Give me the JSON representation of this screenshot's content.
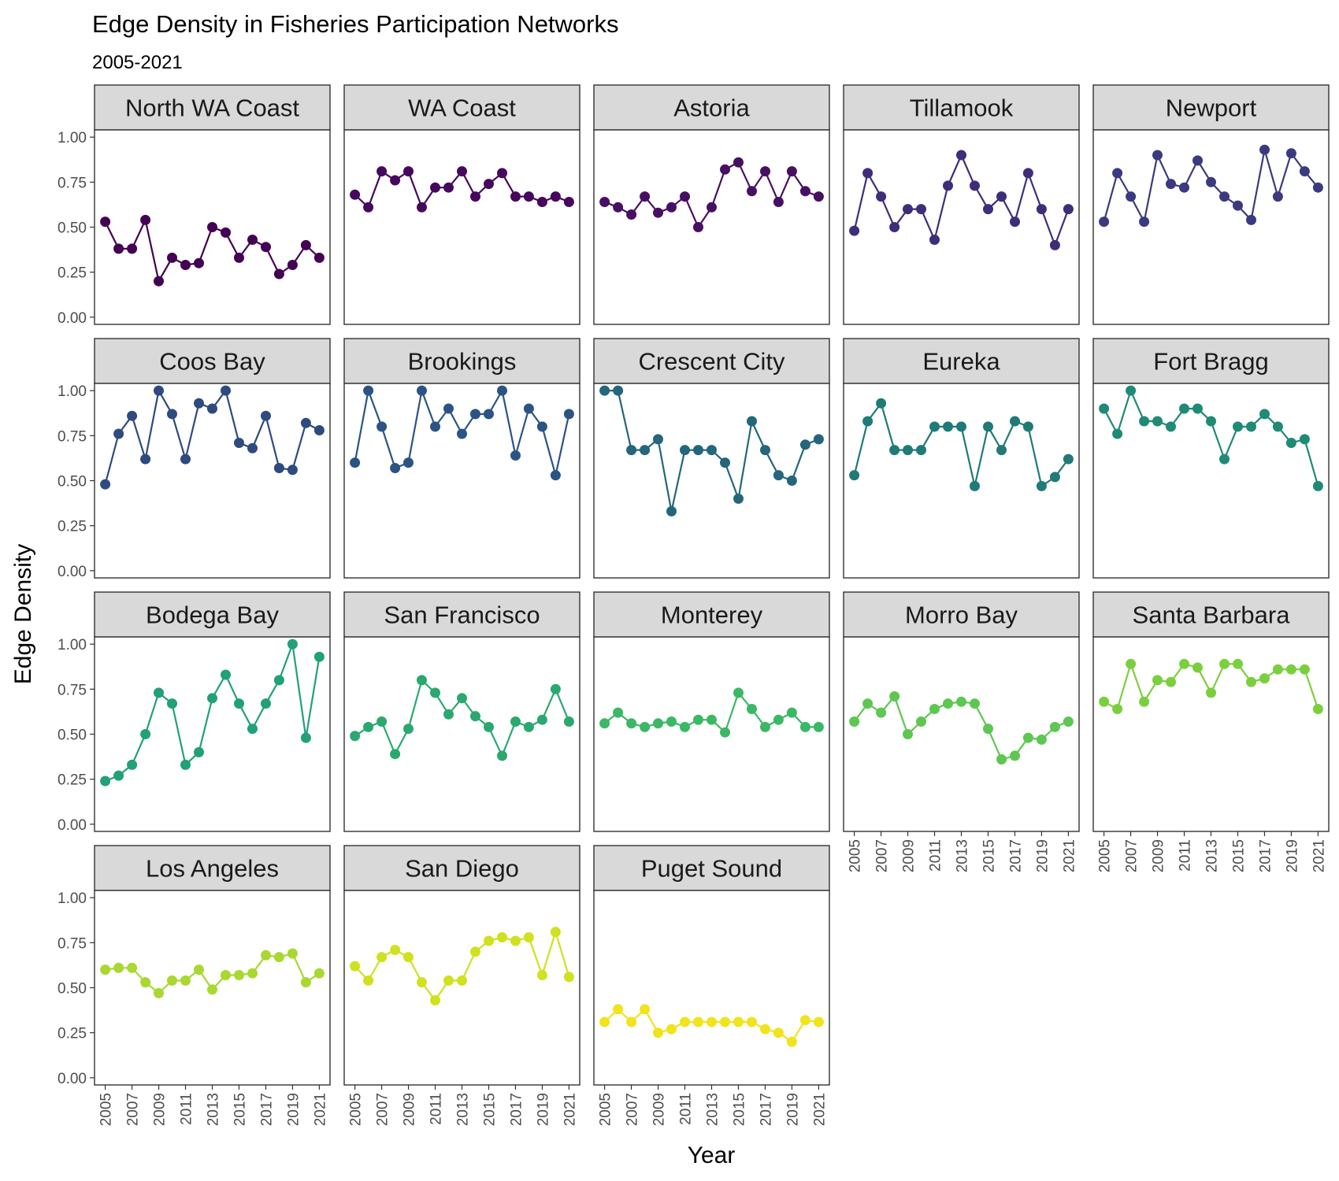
{
  "chart_data": {
    "type": "line",
    "title": "Edge Density in Fisheries Participation Networks",
    "subtitle": "2005-2021",
    "xlabel": "Year",
    "ylabel": "Edge Density",
    "ylim": [
      -0.04,
      1.04
    ],
    "y_ticks": [
      "0.00",
      "0.25",
      "0.50",
      "0.75",
      "1.00"
    ],
    "x_ticks": [
      "2005",
      "2007",
      "2009",
      "2011",
      "2013",
      "2015",
      "2017",
      "2019",
      "2021"
    ],
    "x": [
      2005,
      2006,
      2007,
      2008,
      2009,
      2010,
      2011,
      2012,
      2013,
      2014,
      2015,
      2016,
      2017,
      2018,
      2019,
      2020,
      2021
    ],
    "grid": false,
    "legend": "none",
    "facets": [
      {
        "name": "North WA Coast",
        "color": "#440154",
        "values": [
          0.53,
          0.38,
          0.38,
          0.54,
          0.2,
          0.33,
          0.29,
          0.3,
          0.5,
          0.47,
          0.33,
          0.43,
          0.39,
          0.24,
          0.29,
          0.4,
          0.33
        ]
      },
      {
        "name": "WA Coast",
        "color": "#46085C",
        "values": [
          0.68,
          0.61,
          0.81,
          0.76,
          0.81,
          0.61,
          0.72,
          0.72,
          0.81,
          0.67,
          0.74,
          0.8,
          0.67,
          0.67,
          0.64,
          0.67,
          0.64
        ]
      },
      {
        "name": "Astoria",
        "color": "#471063",
        "values": [
          0.64,
          0.61,
          0.57,
          0.67,
          0.58,
          0.61,
          0.67,
          0.5,
          0.61,
          0.82,
          0.86,
          0.7,
          0.81,
          0.64,
          0.81,
          0.7,
          0.67
        ]
      },
      {
        "name": "Tillamook",
        "color": "#3F2D7A",
        "values": [
          0.48,
          0.8,
          0.67,
          0.5,
          0.6,
          0.6,
          0.43,
          0.73,
          0.9,
          0.73,
          0.6,
          0.67,
          0.53,
          0.8,
          0.6,
          0.4,
          0.6
        ]
      },
      {
        "name": "Newport",
        "color": "#3B3A80",
        "values": [
          0.53,
          0.8,
          0.67,
          0.53,
          0.9,
          0.74,
          0.72,
          0.87,
          0.75,
          0.67,
          0.62,
          0.54,
          0.93,
          0.67,
          0.91,
          0.81,
          0.72
        ]
      },
      {
        "name": "Coos Bay",
        "color": "#2E4A7F",
        "values": [
          0.48,
          0.76,
          0.86,
          0.62,
          1.0,
          0.87,
          0.62,
          0.93,
          0.9,
          1.0,
          0.71,
          0.68,
          0.86,
          0.57,
          0.56,
          0.82,
          0.78
        ]
      },
      {
        "name": "Brookings",
        "color": "#2B5484",
        "values": [
          0.6,
          1.0,
          0.8,
          0.57,
          0.6,
          1.0,
          0.8,
          0.9,
          0.76,
          0.87,
          0.87,
          1.0,
          0.64,
          0.9,
          0.8,
          0.53,
          0.87
        ]
      },
      {
        "name": "Crescent City",
        "color": "#24667B",
        "values": [
          1.0,
          1.0,
          0.67,
          0.67,
          0.73,
          0.33,
          0.67,
          0.67,
          0.67,
          0.6,
          0.4,
          0.83,
          0.67,
          0.53,
          0.5,
          0.7,
          0.73
        ]
      },
      {
        "name": "Eureka",
        "color": "#1F7A78",
        "values": [
          0.53,
          0.83,
          0.93,
          0.67,
          0.67,
          0.67,
          0.8,
          0.8,
          0.8,
          0.47,
          0.8,
          0.67,
          0.83,
          0.8,
          0.47,
          0.52,
          0.62
        ]
      },
      {
        "name": "Fort Bragg",
        "color": "#1F8A75",
        "values": [
          0.9,
          0.76,
          1.0,
          0.83,
          0.83,
          0.8,
          0.9,
          0.9,
          0.83,
          0.62,
          0.8,
          0.8,
          0.87,
          0.8,
          0.71,
          0.73,
          0.47
        ]
      },
      {
        "name": "Bodega Bay",
        "color": "#21A07A",
        "values": [
          0.24,
          0.27,
          0.33,
          0.5,
          0.73,
          0.67,
          0.33,
          0.4,
          0.7,
          0.83,
          0.67,
          0.53,
          0.67,
          0.8,
          1.0,
          0.48,
          0.93
        ]
      },
      {
        "name": "San Francisco",
        "color": "#2AA86F",
        "values": [
          0.49,
          0.54,
          0.57,
          0.39,
          0.53,
          0.8,
          0.73,
          0.61,
          0.7,
          0.6,
          0.54,
          0.38,
          0.57,
          0.54,
          0.58,
          0.75,
          0.57
        ]
      },
      {
        "name": "Monterey",
        "color": "#3BB866",
        "values": [
          0.56,
          0.62,
          0.56,
          0.54,
          0.56,
          0.57,
          0.54,
          0.58,
          0.58,
          0.51,
          0.73,
          0.64,
          0.54,
          0.58,
          0.62,
          0.54,
          0.54
        ]
      },
      {
        "name": "Morro Bay",
        "color": "#5DC751",
        "values": [
          0.57,
          0.67,
          0.62,
          0.71,
          0.5,
          0.57,
          0.64,
          0.67,
          0.68,
          0.67,
          0.53,
          0.36,
          0.38,
          0.48,
          0.47,
          0.54,
          0.57
        ]
      },
      {
        "name": "Santa Barbara",
        "color": "#7BCF3E",
        "values": [
          0.68,
          0.64,
          0.89,
          0.68,
          0.8,
          0.79,
          0.89,
          0.87,
          0.73,
          0.89,
          0.89,
          0.79,
          0.81,
          0.86,
          0.86,
          0.86,
          0.64
        ]
      },
      {
        "name": "Los Angeles",
        "color": "#A8D831",
        "values": [
          0.6,
          0.61,
          0.61,
          0.53,
          0.47,
          0.54,
          0.54,
          0.6,
          0.49,
          0.57,
          0.57,
          0.58,
          0.68,
          0.67,
          0.69,
          0.53,
          0.58
        ]
      },
      {
        "name": "San Diego",
        "color": "#CFE11F",
        "values": [
          0.62,
          0.54,
          0.67,
          0.71,
          0.67,
          0.53,
          0.43,
          0.54,
          0.54,
          0.7,
          0.76,
          0.78,
          0.76,
          0.78,
          0.57,
          0.81,
          0.56
        ]
      },
      {
        "name": "Puget Sound",
        "color": "#F1E31D",
        "values": [
          0.31,
          0.38,
          0.31,
          0.38,
          0.25,
          0.27,
          0.31,
          0.31,
          0.31,
          0.31,
          0.31,
          0.31,
          0.27,
          0.25,
          0.2,
          0.32,
          0.31
        ]
      }
    ]
  }
}
